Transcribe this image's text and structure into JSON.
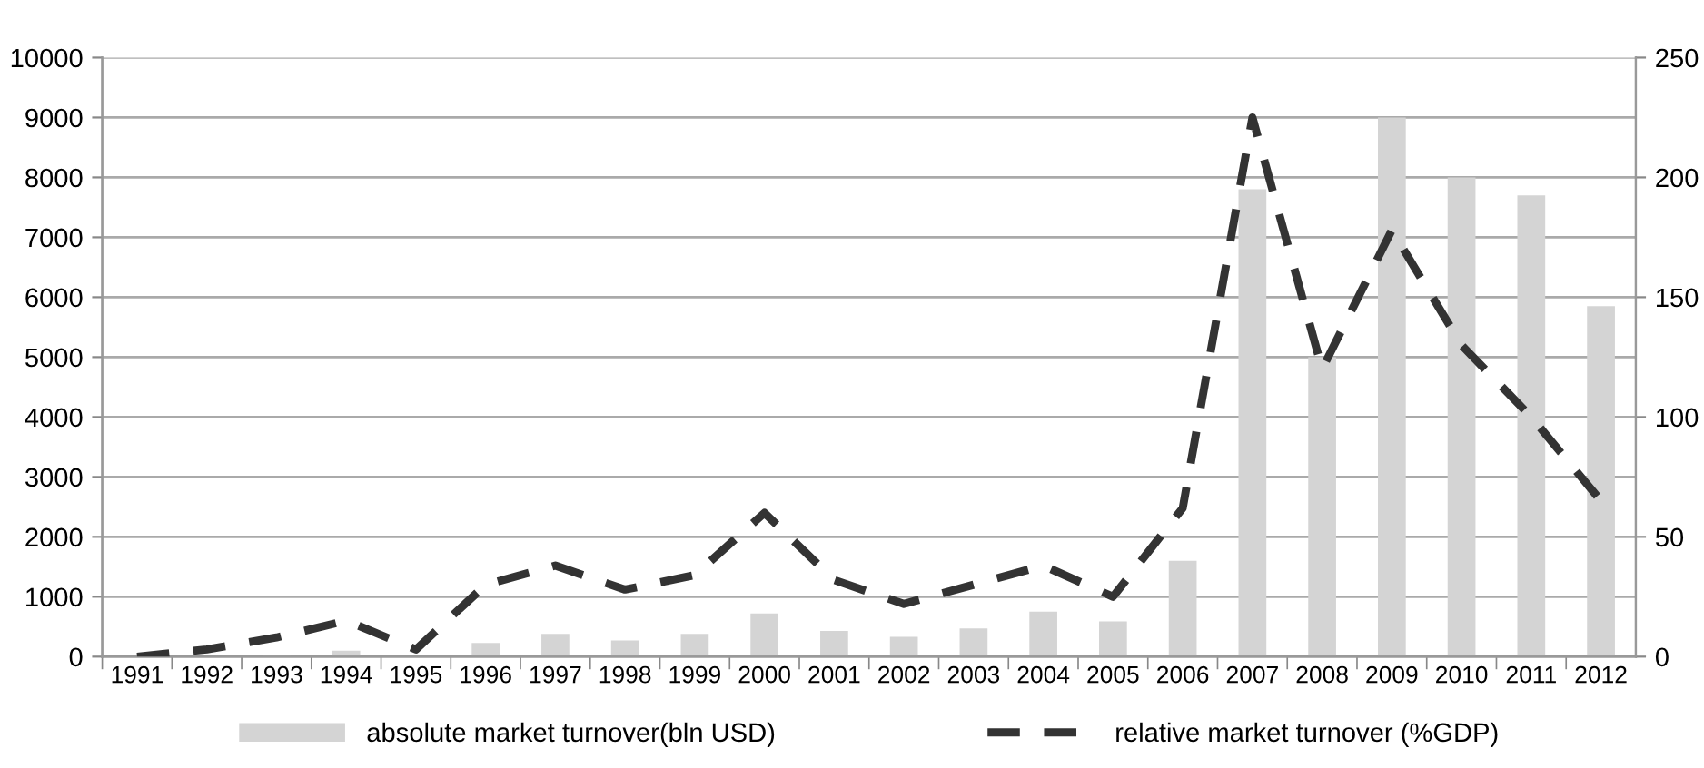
{
  "chart_data": {
    "type": "bar",
    "categories": [
      "1991",
      "1992",
      "1993",
      "1994",
      "1995",
      "1996",
      "1997",
      "1998",
      "1999",
      "2000",
      "2001",
      "2002",
      "2003",
      "2004",
      "2005",
      "2006",
      "2007",
      "2008",
      "2009",
      "2010",
      "2011",
      "2012"
    ],
    "series": [
      {
        "name": "absolute market turnover(bln USD)",
        "color": "#d4d4d4",
        "values": [
          0,
          0,
          20,
          100,
          null,
          230,
          380,
          270,
          380,
          720,
          430,
          330,
          470,
          750,
          590,
          1600,
          7800,
          5000,
          9000,
          8000,
          7700,
          5850
        ]
      },
      {
        "name": "relative market turnover (%GDP)",
        "type": "line",
        "axis": "y2",
        "color": "#333333",
        "line_style": "dashed",
        "values": [
          0,
          3,
          8,
          15,
          3,
          30,
          38,
          28,
          34,
          60,
          32,
          22,
          30,
          38,
          25,
          62,
          225,
          120,
          178,
          130,
          100,
          65
        ]
      }
    ],
    "ylim": [
      0,
      10000
    ],
    "yticks": [
      0,
      1000,
      2000,
      3000,
      4000,
      5000,
      6000,
      7000,
      8000,
      9000,
      10000
    ],
    "y2lim": [
      0,
      250
    ],
    "y2ticks": [
      0,
      50,
      100,
      150,
      200,
      250
    ],
    "grid": "y",
    "legend": "bottom",
    "marker": "none"
  }
}
